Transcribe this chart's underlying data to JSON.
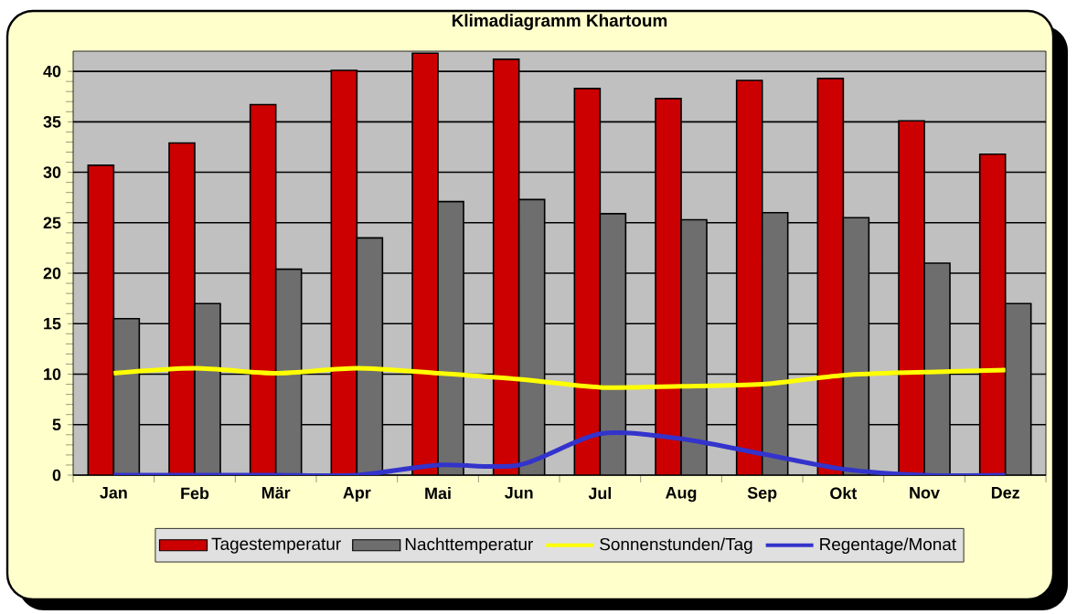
{
  "chart_data": {
    "type": "bar",
    "title": "Klimadiagramm Khartoum",
    "categories": [
      "Jan",
      "Feb",
      "Mär",
      "Apr",
      "Mai",
      "Jun",
      "Jul",
      "Aug",
      "Sep",
      "Okt",
      "Nov",
      "Dez"
    ],
    "ylim": [
      0,
      42
    ],
    "yticks": [
      0,
      5,
      10,
      15,
      20,
      25,
      30,
      35,
      40
    ],
    "grid": "y",
    "legend": "bottom",
    "series": [
      {
        "name": "Tagestemperatur",
        "color": "#cc0000",
        "values": [
          30.7,
          32.9,
          36.7,
          40.1,
          41.8,
          41.2,
          38.3,
          37.3,
          39.1,
          39.3,
          35.1,
          31.8
        ]
      },
      {
        "name": "Nachttemperatur",
        "color": "#6e6e6e",
        "values": [
          15.5,
          17.0,
          20.4,
          23.5,
          27.1,
          27.3,
          25.9,
          25.3,
          26.0,
          25.5,
          21.0,
          17.0
        ]
      },
      {
        "name": "Sonnenstunden/Tag",
        "type": "line",
        "color": "#ffff00",
        "values": [
          10.1,
          10.6,
          10.1,
          10.6,
          10.1,
          9.5,
          8.7,
          8.8,
          9.0,
          9.9,
          10.2,
          10.4
        ]
      },
      {
        "name": "Regentage/Monat",
        "type": "line",
        "color": "#3333cc",
        "values": [
          0,
          0,
          0,
          0,
          1.0,
          1.0,
          4.1,
          3.6,
          2.1,
          0.6,
          0,
          0
        ]
      }
    ]
  }
}
